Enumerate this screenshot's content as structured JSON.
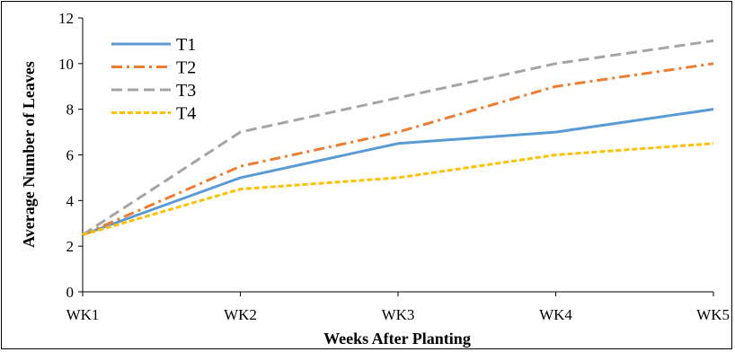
{
  "chart_data": {
    "type": "line",
    "xlabel": "Weeks After Planting",
    "ylabel": "Average Number of Leaves",
    "categories": [
      "WK1",
      "WK2",
      "WK3",
      "WK4",
      "WK5"
    ],
    "yticks": [
      "0",
      "2",
      "4",
      "6",
      "8",
      "10",
      "12"
    ],
    "ylim": [
      0,
      12
    ],
    "grid": false,
    "legend_position": "top-left",
    "series": [
      {
        "name": "T1",
        "values": [
          2.5,
          5.0,
          6.5,
          7.0,
          8.0
        ],
        "color": "#5B9BD5",
        "style": "solid"
      },
      {
        "name": "T2",
        "values": [
          2.5,
          5.5,
          7.0,
          9.0,
          10.0
        ],
        "color": "#ED7D31",
        "style": "dash-dot"
      },
      {
        "name": "T3",
        "values": [
          2.5,
          7.0,
          8.5,
          10.0,
          11.0
        ],
        "color": "#A5A5A5",
        "style": "dashed"
      },
      {
        "name": "T4",
        "values": [
          2.5,
          4.5,
          5.0,
          6.0,
          6.5
        ],
        "color": "#FFC000",
        "style": "dotted"
      }
    ]
  }
}
